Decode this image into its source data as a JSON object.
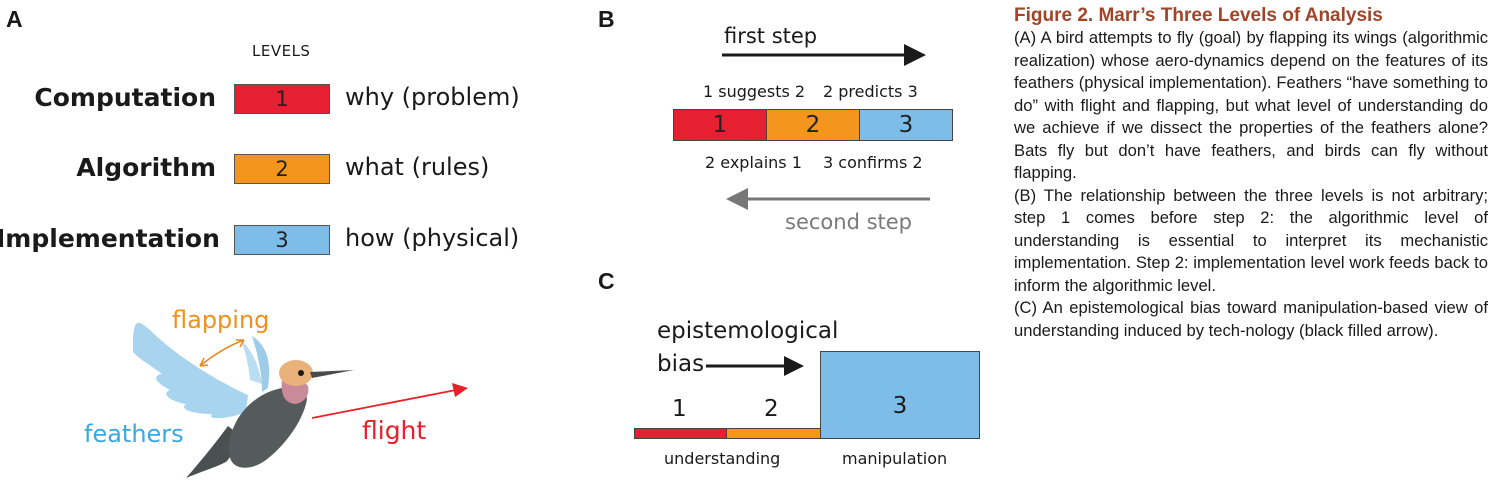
{
  "panel_a": {
    "letter": "A",
    "levels_header": "LEVELS",
    "levels": [
      {
        "name": "Computation",
        "number": "1",
        "description": "why (problem)",
        "color": "#e62030"
      },
      {
        "name": "Algorithm",
        "number": "2",
        "description": "what (rules)",
        "color": "#f4951e"
      },
      {
        "name": "Implementation",
        "number": "3",
        "description": "how (physical)",
        "color": "#7dbde8"
      }
    ],
    "bird_labels": {
      "flapping": "flapping",
      "feathers": "feathers",
      "flight": "flight"
    },
    "colors": {
      "flapping": "#f0901e",
      "feathers": "#3aa8e0",
      "flight": "#e8202a"
    }
  },
  "panel_b": {
    "letter": "B",
    "first_step": "first step",
    "second_step": "second step",
    "top_labels": [
      "1 suggests 2",
      "2 predicts 3"
    ],
    "bottom_labels": [
      "2 explains 1",
      "3 confirms 2"
    ],
    "segments": [
      "1",
      "2",
      "3"
    ]
  },
  "panel_c": {
    "letter": "C",
    "bias_line1": "epistemological",
    "bias_line2": "bias",
    "numbers": [
      "1",
      "2",
      "3"
    ],
    "understanding": "understanding",
    "manipulation": "manipulation"
  },
  "caption": {
    "title": "Figure 2.  Marr’s Three Levels of Analysis",
    "paragraphs": [
      "(A) A bird attempts to fly (goal) by flapping its wings (algorithmic realization) whose aero-dynamics depend on the features of its feathers (physical implementation). Feathers “have something to do” with flight and flapping, but what level of understanding do we achieve if we dissect the properties of the feathers alone? Bats fly but don’t have feathers, and birds can fly without flapping.",
      "(B) The relationship between the three levels is not arbitrary; step 1 comes before step 2: the algorithmic level of understanding is essential to interpret its mechanistic implementation. Step 2: implementation level work feeds back to inform the algorithmic level.",
      "(C) An epistemological bias toward manipulation-based view of understanding induced by tech-nology (black filled arrow)."
    ]
  }
}
